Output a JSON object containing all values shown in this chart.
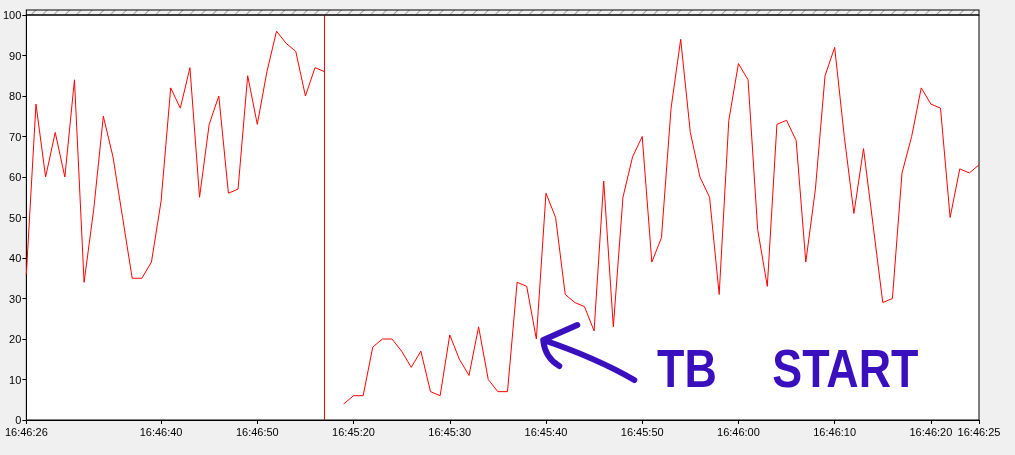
{
  "chart_data": {
    "type": "line",
    "color": "#ff0000",
    "marker": "none",
    "line_style": "solid",
    "categories": [
      "16:46:26",
      null,
      null,
      null,
      null,
      null,
      null,
      null,
      null,
      null,
      null,
      null,
      null,
      null,
      "16:46:40",
      null,
      null,
      null,
      null,
      null,
      null,
      null,
      null,
      null,
      "16:46:50",
      null,
      null,
      null,
      null,
      null,
      null,
      null,
      null,
      null,
      "16:45:20",
      null,
      null,
      null,
      null,
      null,
      null,
      null,
      null,
      null,
      "16:45:30",
      null,
      null,
      null,
      null,
      null,
      null,
      null,
      null,
      null,
      "16:45:40",
      null,
      null,
      null,
      null,
      null,
      null,
      null,
      null,
      null,
      "16:45:50",
      null,
      null,
      null,
      null,
      null,
      null,
      null,
      null,
      null,
      "16:46:00",
      null,
      null,
      null,
      null,
      null,
      null,
      null,
      null,
      null,
      "16:46:10",
      null,
      null,
      null,
      null,
      null,
      null,
      null,
      null,
      null,
      "16:46:20",
      null,
      null,
      null,
      null,
      "16:46:25"
    ],
    "values": [
      36,
      78,
      60,
      71,
      60,
      84,
      34,
      52,
      75,
      65,
      50,
      35,
      35,
      39,
      54,
      82,
      77,
      87,
      55,
      73,
      80,
      56,
      57,
      85,
      73,
      86,
      96,
      93,
      91,
      80,
      87,
      86,
      null,
      4,
      6,
      6,
      18,
      20,
      20,
      17,
      13,
      17,
      7,
      6,
      21,
      15,
      11,
      23,
      10,
      7,
      7,
      34,
      33,
      20,
      56,
      50,
      31,
      29,
      28,
      22,
      59,
      23,
      55,
      65,
      70,
      39,
      45,
      77,
      94,
      71,
      60,
      55,
      31,
      74,
      88,
      84,
      47,
      33,
      73,
      74,
      69,
      39,
      57,
      85,
      92,
      70,
      51,
      67,
      48,
      29,
      30,
      61,
      70,
      82,
      78,
      77,
      50,
      62,
      61,
      63
    ],
    "ylim": [
      0,
      100
    ],
    "yticks": [
      0,
      10,
      20,
      30,
      40,
      50,
      60,
      70,
      80,
      90,
      100
    ],
    "annotations": [
      "TB START"
    ]
  }
}
